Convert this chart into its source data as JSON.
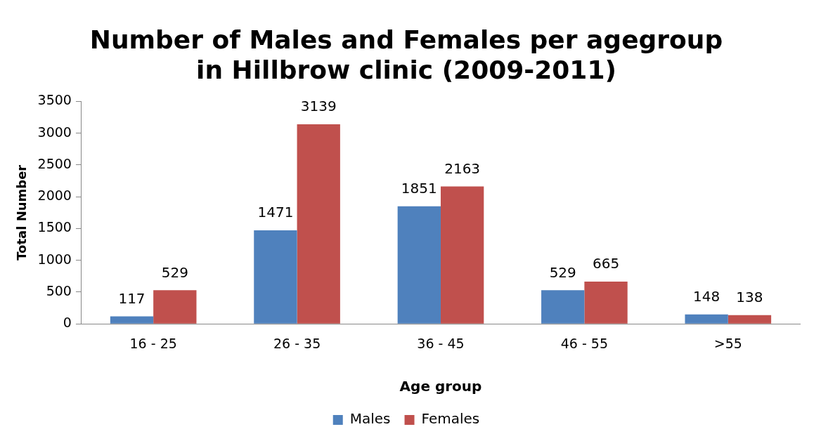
{
  "chart_data": {
    "type": "bar",
    "title": [
      "Number of Males and Females per agegroup",
      "in Hillbrow clinic (2009-2011)"
    ],
    "xlabel": "Age group",
    "ylabel": "Total Number",
    "categories": [
      "16 - 25",
      "26 - 35",
      "36 - 45",
      "46 - 55",
      ">55"
    ],
    "series": [
      {
        "name": "Males",
        "color": "#4f81bd",
        "values": [
          117,
          1471,
          1851,
          529,
          148
        ]
      },
      {
        "name": "Females",
        "color": "#c0504d",
        "values": [
          529,
          3139,
          2163,
          665,
          138
        ]
      }
    ],
    "ylim": [
      0,
      3500
    ],
    "yticks": [
      0,
      500,
      1000,
      1500,
      2000,
      2500,
      3000,
      3500
    ],
    "grid": false,
    "legend": "bottom",
    "data_labels": true
  }
}
